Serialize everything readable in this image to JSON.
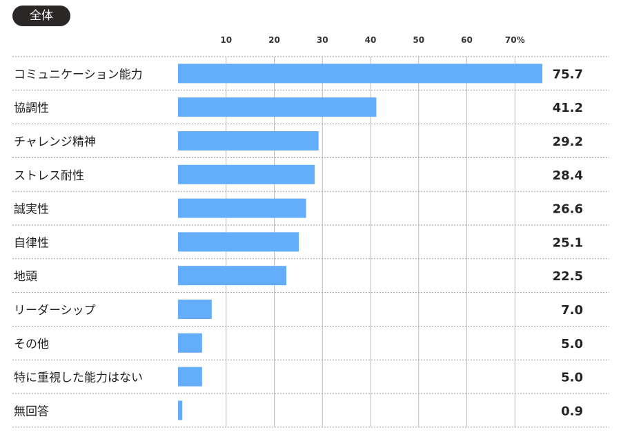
{
  "badge": {
    "label": "全体"
  },
  "chart_data": {
    "type": "bar",
    "orientation": "horizontal",
    "categories": [
      "コミュニケーション能力",
      "協調性",
      "チャレンジ精神",
      "ストレス耐性",
      "誠実性",
      "自律性",
      "地頭",
      "リーダーシップ",
      "その他",
      "特に重視した能力はない",
      "無回答"
    ],
    "values": [
      75.7,
      41.2,
      29.2,
      28.4,
      26.6,
      25.1,
      22.5,
      7.0,
      5.0,
      5.0,
      0.9
    ],
    "value_labels": [
      "75.7",
      "41.2",
      "29.2",
      "28.4",
      "26.6",
      "25.1",
      "22.5",
      "7.0",
      "5.0",
      "5.0",
      "0.9"
    ],
    "ticks": [
      10,
      20,
      30,
      40,
      50,
      60,
      70
    ],
    "tick_labels": [
      "10",
      "20",
      "30",
      "40",
      "50",
      "60",
      "70%"
    ],
    "xlim": [
      0,
      75.7
    ],
    "grid": true,
    "colors": {
      "bar": "#64adfa",
      "grid": "#bdbdbd",
      "separator": "#9a9a9a"
    }
  }
}
